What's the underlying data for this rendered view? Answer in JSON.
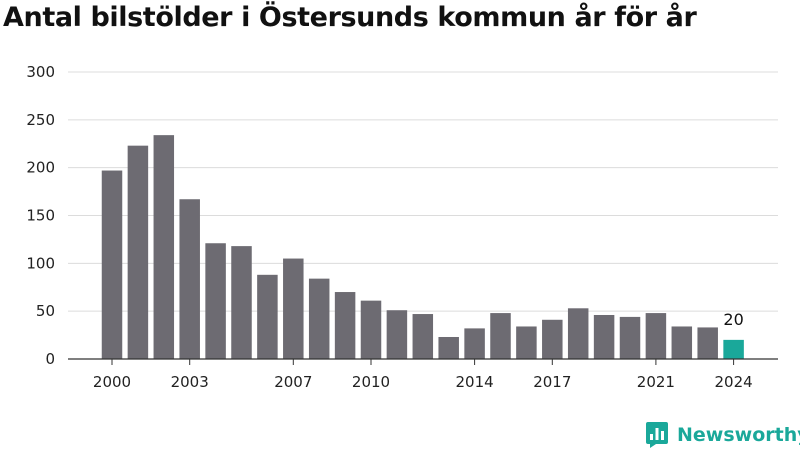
{
  "chart_data": {
    "type": "bar",
    "title": "Antal bilstölder i Östersunds kommun år för år",
    "xlabel": "",
    "ylabel": "",
    "categories": [
      "2000",
      "2001",
      "2002",
      "2003",
      "2004",
      "2005",
      "2006",
      "2007",
      "2008",
      "2009",
      "2010",
      "2011",
      "2012",
      "2013",
      "2014",
      "2015",
      "2016",
      "2017",
      "2018",
      "2019",
      "2020",
      "2021",
      "2022",
      "2023",
      "2024"
    ],
    "values": [
      197,
      223,
      234,
      167,
      121,
      118,
      88,
      105,
      84,
      70,
      61,
      51,
      47,
      23,
      32,
      48,
      34,
      41,
      53,
      46,
      44,
      48,
      34,
      33,
      20
    ],
    "x_tick_labels": [
      "2000",
      "2003",
      "2007",
      "2010",
      "2014",
      "2017",
      "2021",
      "2024"
    ],
    "y_ticks": [
      0,
      50,
      100,
      150,
      200,
      250,
      300
    ],
    "ylim": [
      0,
      300
    ],
    "grid": true,
    "legend": "none",
    "highlight": {
      "category": "2024",
      "label": "20"
    },
    "colors": {
      "bar": "#6d6b72",
      "highlight": "#1aa89a",
      "grid": "#dcdcdc",
      "axis": "#333333"
    }
  },
  "brand": {
    "name": "Newsworthy",
    "icon": "newsworthy-logo-icon",
    "color": "#1aa89a"
  }
}
